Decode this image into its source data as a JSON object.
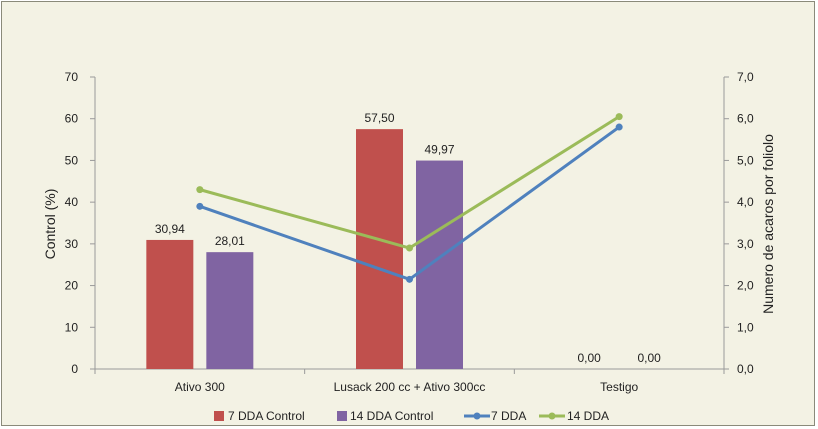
{
  "chart_data": {
    "type": "bar+line",
    "categories": [
      "Ativo 300",
      "Lusack 200 cc + Ativo 300cc",
      "Testigo"
    ],
    "bar_series": [
      {
        "name": "7 DDA Control",
        "values": [
          30.94,
          57.5,
          0.0
        ],
        "labels": [
          "30,94",
          "57,50",
          "0,00"
        ],
        "color": "#c0504d"
      },
      {
        "name": "14 DDA Control",
        "values": [
          28.01,
          49.97,
          0.0
        ],
        "labels": [
          "28,01",
          "49,97",
          "0,00"
        ],
        "color": "#8064a2"
      }
    ],
    "line_series": [
      {
        "name": "7 DDA",
        "values": [
          3.9,
          2.15,
          5.8
        ],
        "color": "#4f81bd"
      },
      {
        "name": "14 DDA",
        "values": [
          4.3,
          2.9,
          6.05
        ],
        "color": "#9bbb59"
      }
    ],
    "y_left": {
      "label": "Control (%)",
      "min": 0,
      "max": 70,
      "ticks": [
        "0",
        "10",
        "20",
        "30",
        "40",
        "50",
        "60",
        "70"
      ]
    },
    "y_right": {
      "label": "Numero de acaros por foliolo",
      "min": 0,
      "max": 7,
      "ticks": [
        "0,0",
        "1,0",
        "2,0",
        "3,0",
        "4,0",
        "5,0",
        "6,0",
        "7,0"
      ]
    },
    "legend": {
      "position": "bottom",
      "items": [
        "7 DDA Control",
        "14 DDA Control",
        "7 DDA",
        "14 DDA"
      ]
    }
  }
}
